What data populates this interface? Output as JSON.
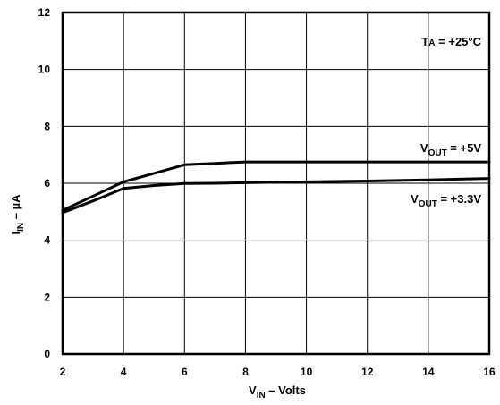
{
  "chart_data": {
    "type": "line",
    "xlabel": {
      "main": "V",
      "sub": "IN",
      "rest": " – Volts"
    },
    "ylabel": {
      "main": "I",
      "sub": "IN",
      "rest": " – µA"
    },
    "xlim": [
      2,
      16
    ],
    "ylim": [
      0,
      12
    ],
    "xticks": [
      "2",
      "4",
      "6",
      "8",
      "10",
      "12",
      "14",
      "16"
    ],
    "yticks": [
      "0",
      "2",
      "4",
      "6",
      "8",
      "10",
      "12"
    ],
    "grid": true,
    "annotation": {
      "main": "T",
      "sub": "A",
      "rest": " = +25°C"
    },
    "series": [
      {
        "name": "VOUT = +5V",
        "label": {
          "main": "V",
          "sub": "OUT",
          "rest": " = +5V"
        },
        "x": [
          2,
          3,
          4,
          5,
          6,
          7,
          8,
          10,
          12,
          14,
          16
        ],
        "y": [
          5.05,
          5.55,
          6.05,
          6.35,
          6.65,
          6.7,
          6.75,
          6.75,
          6.75,
          6.75,
          6.75
        ]
      },
      {
        "name": "VOUT = +3.3V",
        "label": {
          "main": "V",
          "sub": "OUT",
          "rest": " = +3.3V"
        },
        "x": [
          2,
          3,
          4,
          5,
          6,
          7,
          8,
          10,
          12,
          14,
          16
        ],
        "y": [
          4.97,
          5.38,
          5.82,
          5.92,
          5.99,
          6.0,
          6.02,
          6.05,
          6.08,
          6.12,
          6.17
        ]
      }
    ]
  }
}
